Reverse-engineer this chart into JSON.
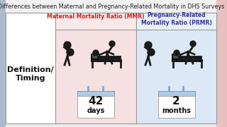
{
  "title": "Differences between Maternal and Pregnancy-Related Mortality in DHS Surveys",
  "title_fontsize": 5.8,
  "left_label": "Definition/\nTiming",
  "col1_header": "Maternal Mortality Ratio (MMR)",
  "col2_header": "Pregnancy-Related\nMortality Ratio (PRMR)",
  "col1_value": "42",
  "col1_unit": "days",
  "col2_value": "2",
  "col2_unit": "months",
  "page_bg": "#e8e8e8",
  "title_bg": "#f0f0f0",
  "left_col_bg": "#ffffff",
  "col1_bg": "#f5e0e2",
  "col2_bg": "#dce8f5",
  "header_col1_color": "#cc2222",
  "header_col2_color": "#333399",
  "calendar_top_color": "#aacce8",
  "calendar_body_color": "#ffffff",
  "calendar_pin_color": "#88aacc",
  "value_fontsize": 11,
  "unit_fontsize": 7,
  "border_color": "#999999",
  "icon_color": "#1a1a1a",
  "right_border_color": "#cc6666",
  "left_border_color": "#6688aa"
}
